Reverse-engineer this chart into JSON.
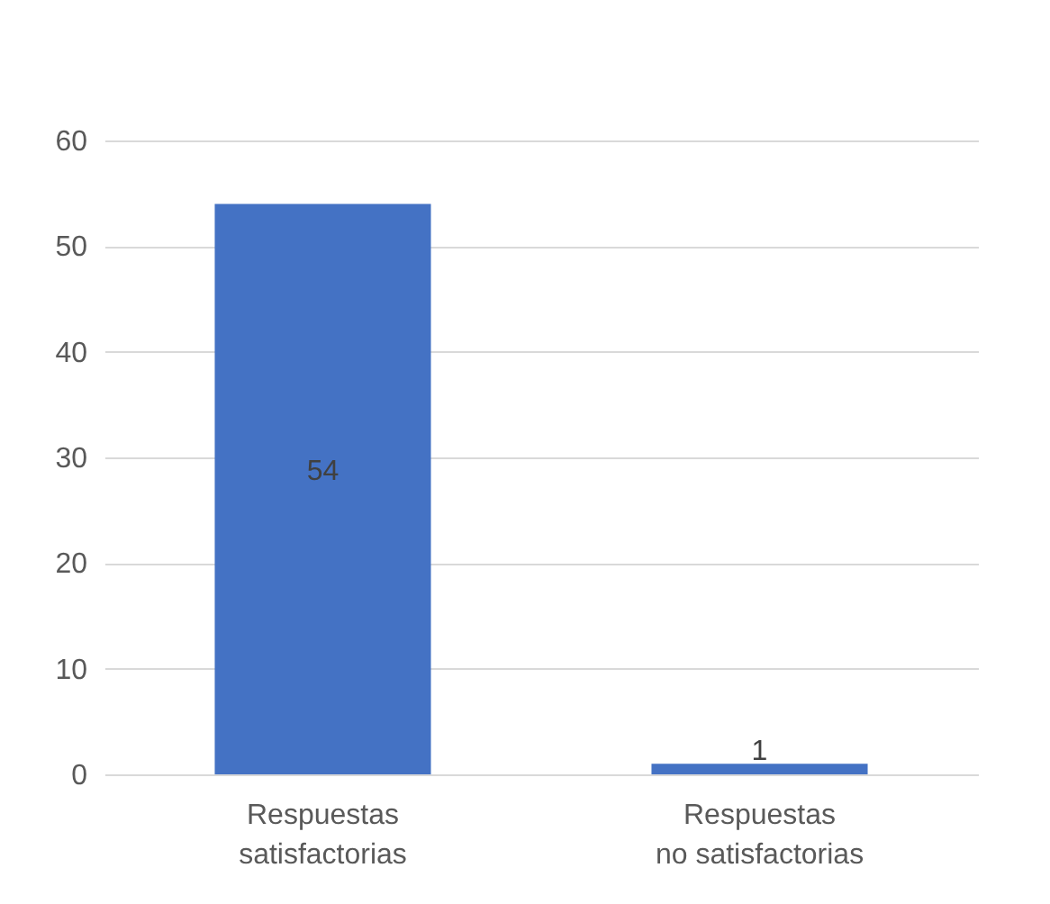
{
  "chart_data": {
    "type": "bar",
    "categories": [
      "Respuestas satisfactorias",
      "Respuestas no satisfactorias"
    ],
    "values": [
      54,
      1
    ],
    "color": "#4472c4",
    "ylim": [
      0,
      60
    ],
    "yticks": [
      0,
      10,
      20,
      30,
      40,
      50,
      60
    ],
    "grid": "y",
    "data_labels": true
  }
}
